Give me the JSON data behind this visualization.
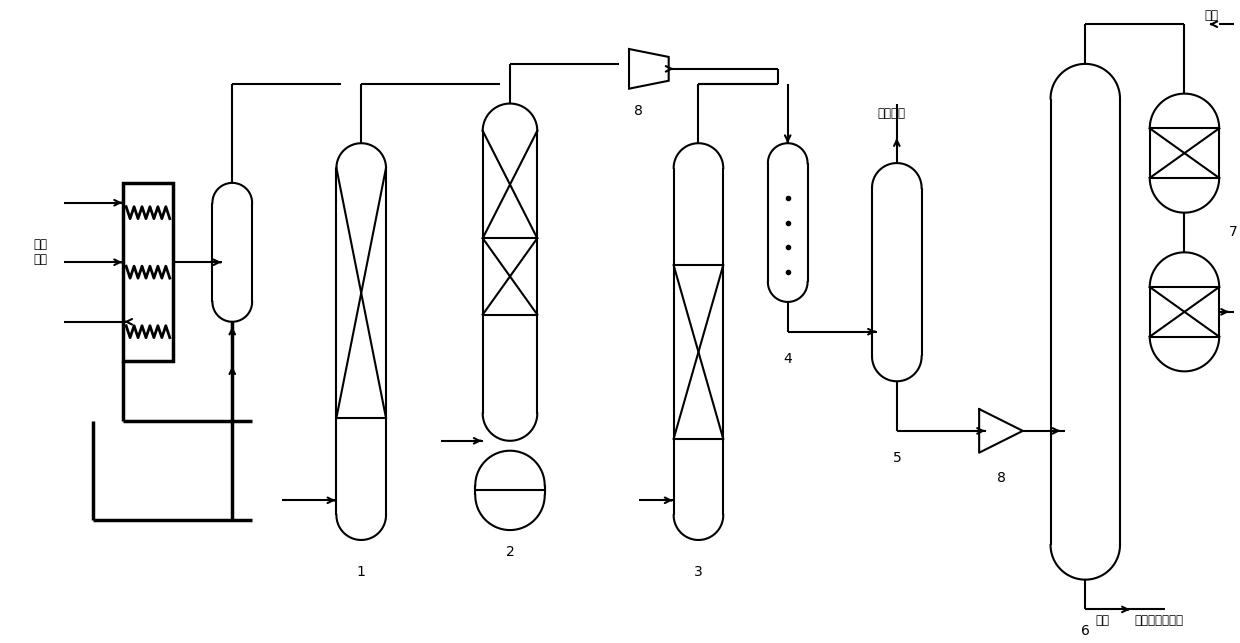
{
  "bg_color": "#ffffff",
  "line_color": "#000000",
  "lw": 1.5,
  "lw_thick": 2.5,
  "fig_width": 12.4,
  "fig_height": 6.43,
  "labels": {
    "dilute_steam": "稀释\n蒸汽",
    "methane_h2": "甲烷、氢",
    "h2": "氢气",
    "c3": "碳三",
    "downstream": "去后续分离系统",
    "eq_label_8a": "8",
    "eq_label_8b": "8",
    "eq_label_1": "1",
    "eq_label_2": "2",
    "eq_label_3": "3",
    "eq_label_4": "4",
    "eq_label_5": "5",
    "eq_label_6": "6",
    "eq_label_7": "7"
  }
}
